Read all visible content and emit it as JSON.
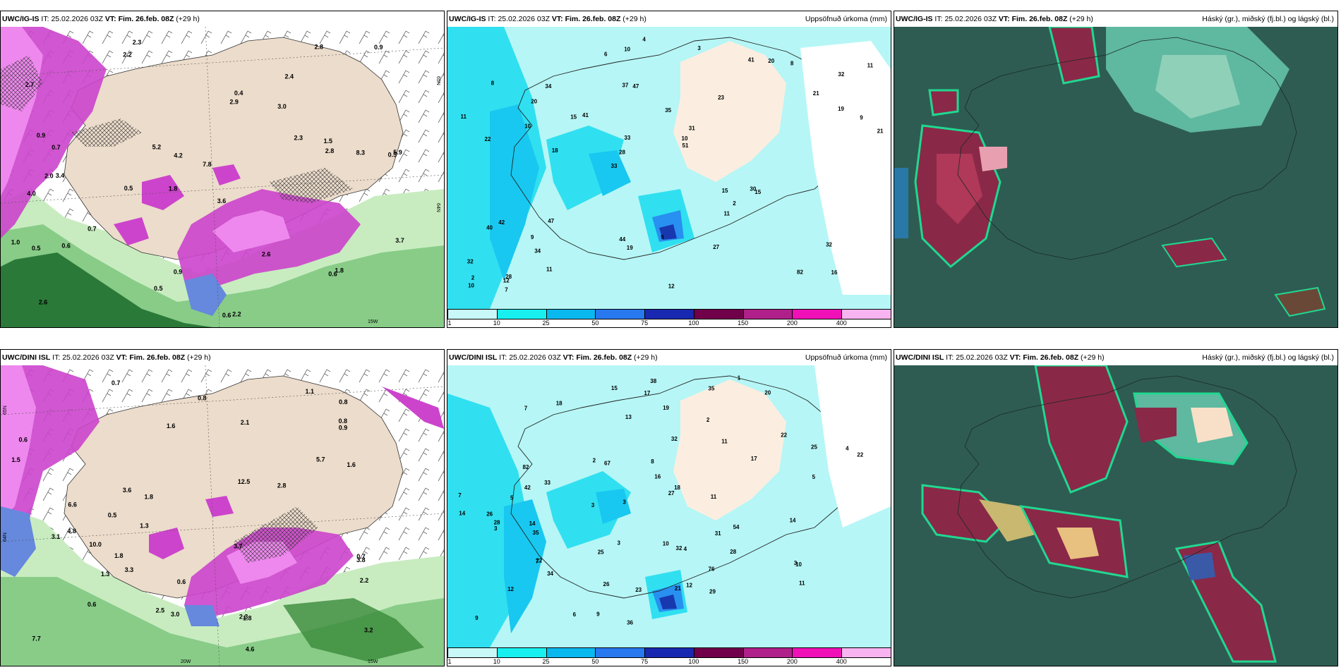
{
  "legend_ticks": [
    "1",
    "10",
    "25",
    "50",
    "75",
    "100",
    "150",
    "200",
    "400"
  ],
  "legend_colors": [
    "#c8f8f8",
    "#18f0f0",
    "#0ab8f0",
    "#2878f0",
    "#1828b0",
    "#70004a",
    "#b0208a",
    "#f010b8",
    "#f8b4f0"
  ],
  "precip_title": "Uppsöfnuð úrkoma (mm)",
  "cloud_title": "Háský (gr.), miðský (fj.bl.) og lágský (bl.)",
  "rows": [
    {
      "model": "UWC/IG-IS",
      "it_label": "IT:",
      "it": "25.02.2026 03Z",
      "vt_label": "VT:",
      "vt": "Fim. 26.feb. 08Z",
      "lead": "(+29 h)",
      "lat_label": "65N",
      "lat_label2": "64N",
      "lon_label": "15W",
      "precip_values": [
        "16",
        "22",
        "32",
        "33",
        "23",
        "28",
        "37",
        "35",
        "42",
        "41",
        "32",
        "34",
        "47",
        "31",
        "15",
        "8",
        "10",
        "21",
        "15",
        "19",
        "28",
        "44",
        "33",
        "34",
        "41",
        "47",
        "82",
        "32",
        "30",
        "12",
        "15",
        "10",
        "11",
        "11",
        "9",
        "10",
        "2",
        "19",
        "51",
        "40",
        "21",
        "11",
        "2",
        "27",
        "9",
        "7",
        "10",
        "9",
        "8",
        "4",
        "18",
        "11",
        "20",
        "20",
        "12",
        "3",
        "6"
      ],
      "stripe_values": [
        "2.3",
        "2.4",
        "0.5",
        "1.8",
        "3.6",
        "3.4",
        "2.7",
        "3.0",
        "4.0",
        "2.9",
        "7.8",
        "2.6",
        "2.2",
        "0.5",
        "0.6",
        "2.2",
        "0.9",
        "2.8",
        "2.3",
        "0.7",
        "0.7",
        "2.0",
        "5.9",
        "8.3",
        "1.0",
        "0.9",
        "4.2",
        "2.8",
        "1.8",
        "0.5",
        "0.6",
        "0.4",
        "0.6",
        "5.2",
        "2.6",
        "3.7",
        "1.5",
        "0.5",
        "0.9"
      ]
    },
    {
      "model": "UWC/DINI ISL",
      "it_label": "IT:",
      "it": "25.02.2026 03Z",
      "vt_label": "VT:",
      "vt": "Fim. 26.feb. 08Z",
      "lead": "(+29 h)",
      "lat_label": "65N",
      "lat_label2": "64N",
      "lon_label": "20W",
      "lon_label2": "15W",
      "precip_values": [
        "12",
        "20",
        "18",
        "22",
        "32",
        "33",
        "35",
        "22",
        "25",
        "17",
        "26",
        "38",
        "28",
        "27",
        "36",
        "15",
        "11",
        "7",
        "7",
        "9",
        "29",
        "17",
        "13",
        "18",
        "16",
        "26",
        "28",
        "35",
        "32",
        "54",
        "82",
        "34",
        "12",
        "10",
        "10",
        "3",
        "4",
        "11",
        "11",
        "14",
        "22",
        "19",
        "23",
        "14",
        "14",
        "42",
        "31",
        "21",
        "25",
        "76",
        "67",
        "6",
        "8",
        "5",
        "3",
        "4",
        "2",
        "3",
        "7",
        "5",
        "9",
        "1",
        "2",
        "3",
        "3"
      ],
      "stripe_values": [
        "1.8",
        "1.8",
        "2.3",
        "3.1",
        "6.6",
        "10.0",
        "7.7",
        "12.5",
        "4.8",
        "5.7",
        "2.2",
        "1.1",
        "4.6",
        "3.0",
        "1.8",
        "1.6",
        "0.8",
        "0.7",
        "0.7",
        "0.6",
        "0.8",
        "1.5",
        "2.1",
        "1.6",
        "3.7",
        "3.3",
        "3.6",
        "3.2",
        "3.8",
        "0.9",
        "1.3",
        "2.8",
        "2.5",
        "0.6",
        "0.6",
        "1.3",
        "0.8",
        "0.5"
      ]
    }
  ]
}
